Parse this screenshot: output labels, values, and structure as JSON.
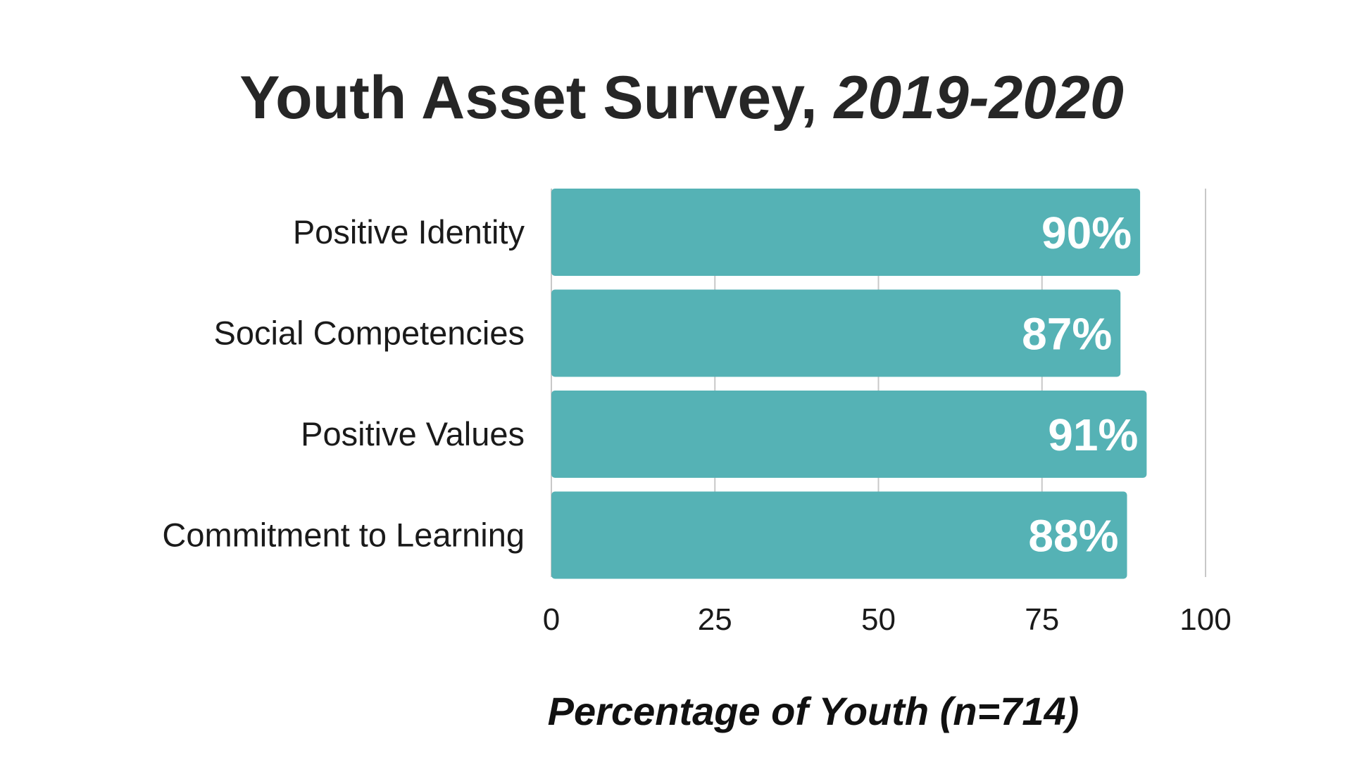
{
  "colors": {
    "bar": "#55b2b5",
    "grid": "#c8c8c8",
    "value_text": "#ffffff"
  },
  "chart_data": {
    "type": "bar",
    "orientation": "horizontal",
    "title": "Youth Asset Survey,",
    "title_italic_part": "2019-2020",
    "categories": [
      "Positive Identity",
      "Social Competencies",
      "Positive Values",
      "Commitment to Learning"
    ],
    "values": [
      90,
      87,
      91,
      88
    ],
    "value_labels": [
      "90%",
      "87%",
      "91%",
      "88%"
    ],
    "xlabel": "Percentage of Youth (n=714)",
    "ylabel": "",
    "xlim": [
      0,
      100
    ],
    "xticks": [
      0,
      25,
      50,
      75,
      100
    ],
    "xtick_labels": [
      "0",
      "25",
      "50",
      "75",
      "100"
    ],
    "grid": true,
    "legend": "none"
  }
}
